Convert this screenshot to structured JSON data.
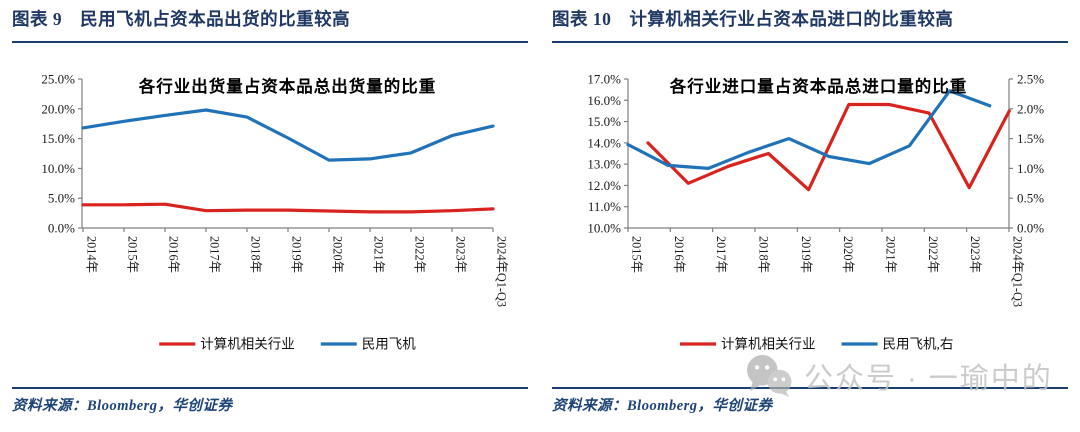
{
  "watermark": {
    "text": "公众号 · 一瑜中的",
    "icon": "wechat-logo"
  },
  "colors": {
    "header_navy": "#1f3864",
    "rule_navy": "#1c3e6e",
    "series_red": "#d8231f",
    "series_blue": "#2173b9",
    "axis_gray": "#7f7f7f",
    "watermark_gray": "#c3c3c3"
  },
  "chart_data": [
    {
      "type": "line",
      "panel_header": "图表 9　民用飞机占资本品出货的比重较高",
      "title": "各行业出货量占资本品总出货量的比重",
      "categories": [
        "2014年",
        "2015年",
        "2016年",
        "2017年",
        "2018年",
        "2019年",
        "2020年",
        "2021年",
        "2022年",
        "2023年",
        "2024年Q1-Q3"
      ],
      "series": [
        {
          "name": "计算机相关行业",
          "color": "#d8231f",
          "axis": "left",
          "values": [
            3.9,
            3.9,
            4.0,
            2.9,
            3.0,
            3.0,
            2.85,
            2.7,
            2.7,
            2.9,
            3.2
          ]
        },
        {
          "name": "民用飞机",
          "color": "#2173b9",
          "axis": "left",
          "values": [
            16.8,
            17.9,
            18.9,
            19.8,
            18.6,
            15.1,
            11.4,
            11.6,
            12.6,
            15.5,
            17.1
          ]
        }
      ],
      "left_axis": {
        "min": 0,
        "max": 25,
        "step": 5,
        "unit": "%",
        "tick_labels": [
          "0.0%",
          "5.0%",
          "10.0%",
          "15.0%",
          "20.0%",
          "25.0%"
        ]
      },
      "legend_position": "bottom",
      "grid": "off",
      "source": "资料来源：Bloomberg，华创证券"
    },
    {
      "type": "line",
      "panel_header": "图表 10　计算机相关行业占资本品进口的比重较高",
      "title": "各行业进口量占资本品总进口量的比重",
      "categories": [
        "2015年",
        "2016年",
        "2017年",
        "2018年",
        "2019年",
        "2020年",
        "2021年",
        "2022年",
        "2023年",
        "2024年Q1-Q3"
      ],
      "series": [
        {
          "name": "计算机相关行业",
          "color": "#d8231f",
          "axis": "left",
          "values": [
            14.0,
            12.1,
            12.9,
            13.5,
            11.8,
            15.8,
            15.8,
            15.4,
            11.9,
            15.5
          ]
        },
        {
          "name": "民用飞机,右",
          "color": "#2173b9",
          "axis": "right",
          "values": [
            1.4,
            1.05,
            1.0,
            1.27,
            1.5,
            1.2,
            1.08,
            1.38,
            2.3,
            2.05
          ]
        }
      ],
      "left_axis": {
        "min": 10,
        "max": 17,
        "step": 1,
        "unit": "%",
        "tick_labels": [
          "10.0%",
          "11.0%",
          "12.0%",
          "13.0%",
          "14.0%",
          "15.0%",
          "16.0%",
          "17.0%"
        ]
      },
      "right_axis": {
        "min": 0,
        "max": 2.5,
        "step": 0.5,
        "unit": "%",
        "tick_labels": [
          "0.0%",
          "0.5%",
          "1.0%",
          "1.5%",
          "2.0%",
          "2.5%"
        ]
      },
      "legend_position": "bottom",
      "grid": "off",
      "source": "资料来源：Bloomberg，华创证券"
    }
  ]
}
